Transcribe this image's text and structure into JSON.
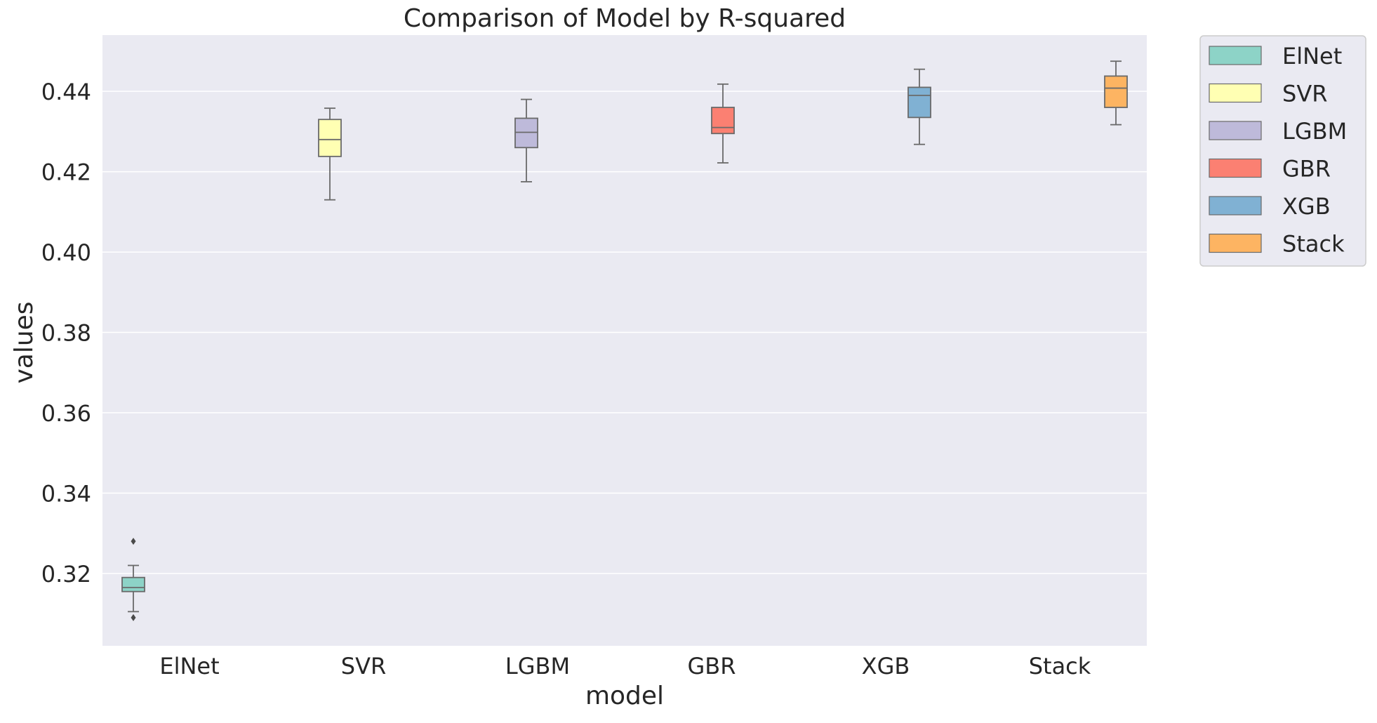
{
  "chart_data": {
    "type": "box",
    "title": "Comparison of Model by R-squared",
    "xlabel": "model",
    "ylabel": "values",
    "categories": [
      "ElNet",
      "SVR",
      "LGBM",
      "GBR",
      "XGB",
      "Stack"
    ],
    "ylim": [
      0.302,
      0.454
    ],
    "yticks": [
      0.32,
      0.34,
      0.36,
      0.38,
      0.4,
      0.42,
      0.44
    ],
    "ytick_labels": [
      "0.32",
      "0.34",
      "0.36",
      "0.38",
      "0.40",
      "0.42",
      "0.44"
    ],
    "grid": true,
    "legend_position": "outside-top-right",
    "series": [
      {
        "name": "ElNet",
        "color": "#8dd3c7",
        "whisker_low": 0.3105,
        "q1": 0.3155,
        "median": 0.3165,
        "q3": 0.319,
        "whisker_high": 0.322,
        "outliers": [
          0.328,
          0.309
        ]
      },
      {
        "name": "SVR",
        "color": "#ffffb3",
        "whisker_low": 0.413,
        "q1": 0.4238,
        "median": 0.428,
        "q3": 0.433,
        "whisker_high": 0.4358,
        "outliers": []
      },
      {
        "name": "LGBM",
        "color": "#bebada",
        "whisker_low": 0.4175,
        "q1": 0.426,
        "median": 0.4298,
        "q3": 0.4333,
        "whisker_high": 0.438,
        "outliers": []
      },
      {
        "name": "GBR",
        "color": "#fb8072",
        "whisker_low": 0.4222,
        "q1": 0.4295,
        "median": 0.431,
        "q3": 0.436,
        "whisker_high": 0.4418,
        "outliers": []
      },
      {
        "name": "XGB",
        "color": "#80b1d3",
        "whisker_low": 0.4268,
        "q1": 0.4335,
        "median": 0.439,
        "q3": 0.441,
        "whisker_high": 0.4455,
        "outliers": []
      },
      {
        "name": "Stack",
        "color": "#fdb462",
        "whisker_low": 0.4317,
        "q1": 0.436,
        "median": 0.4408,
        "q3": 0.4438,
        "whisker_high": 0.4475,
        "outliers": []
      }
    ]
  }
}
